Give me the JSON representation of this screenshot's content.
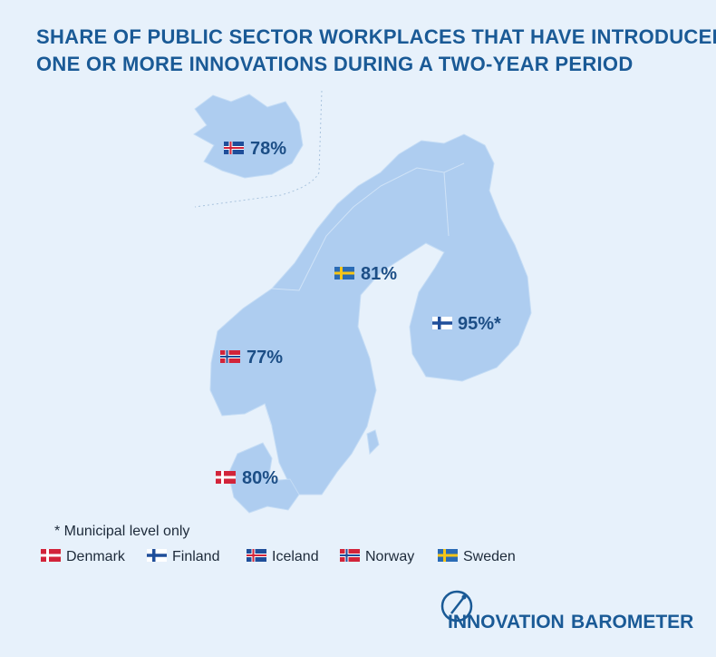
{
  "title": [
    "SHARE OF PUBLIC SECTOR WORKPLACES THAT HAVE INTRODUCED",
    "ONE OR MORE INNOVATIONS DURING A TWO-YEAR PERIOD"
  ],
  "map": {
    "labels": [
      "78%",
      "81%",
      "95%*",
      "77%",
      "80%"
    ]
  },
  "footnote": "* Municipal level only",
  "legend": {
    "items": [
      "Denmark",
      "Finland",
      "Iceland",
      "Norway",
      "Sweden"
    ]
  },
  "logo": {
    "words": [
      "INNOVATION",
      "BAROMETER"
    ]
  }
}
